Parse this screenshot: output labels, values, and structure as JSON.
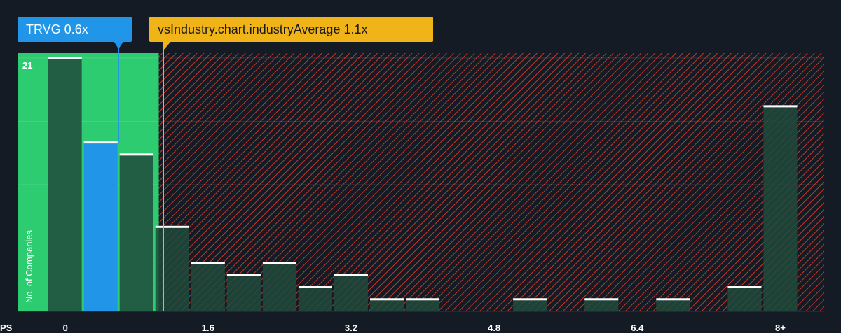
{
  "colors": {
    "background": "#151b24",
    "fair_zone": "#2ecc71",
    "company": "#2196e8",
    "industry": "#f0b418",
    "hatch": "#c0392b",
    "bar": "#1e4a3c",
    "bar_top": "#ffffff"
  },
  "callouts": {
    "company_label": "TRVG 0.6x",
    "industry_label": "vsIndustry.chart.industryAverage 1.1x"
  },
  "chart_data": {
    "type": "bar",
    "title": "",
    "xlabel": "PS",
    "ylabel": "No. of Companies",
    "x_ticks": [
      "0",
      "1.6",
      "3.2",
      "4.8",
      "6.4",
      "8+"
    ],
    "x_tick_values": [
      0,
      1.6,
      3.2,
      4.8,
      6.4,
      8.0
    ],
    "y_ticks": [
      "21"
    ],
    "y_tick_values": [
      21
    ],
    "ylim": [
      0,
      21.4
    ],
    "xlim": [
      -0.53,
      8.49
    ],
    "bin_width": 0.4,
    "bins": [
      {
        "x": 0.0,
        "count": 21,
        "highlight": false
      },
      {
        "x": 0.4,
        "count": 14,
        "highlight": true
      },
      {
        "x": 0.8,
        "count": 13,
        "highlight": false
      },
      {
        "x": 1.2,
        "count": 7,
        "highlight": false
      },
      {
        "x": 1.6,
        "count": 4,
        "highlight": false
      },
      {
        "x": 2.0,
        "count": 3,
        "highlight": false
      },
      {
        "x": 2.4,
        "count": 4,
        "highlight": false
      },
      {
        "x": 2.8,
        "count": 2,
        "highlight": false
      },
      {
        "x": 3.2,
        "count": 3,
        "highlight": false
      },
      {
        "x": 3.6,
        "count": 1,
        "highlight": false
      },
      {
        "x": 4.0,
        "count": 1,
        "highlight": false
      },
      {
        "x": 4.4,
        "count": 0,
        "highlight": false
      },
      {
        "x": 4.8,
        "count": 0,
        "highlight": false
      },
      {
        "x": 5.2,
        "count": 1,
        "highlight": false
      },
      {
        "x": 5.6,
        "count": 0,
        "highlight": false
      },
      {
        "x": 6.0,
        "count": 1,
        "highlight": false
      },
      {
        "x": 6.4,
        "count": 0,
        "highlight": false
      },
      {
        "x": 6.8,
        "count": 1,
        "highlight": false
      },
      {
        "x": 7.2,
        "count": 0,
        "highlight": false
      },
      {
        "x": 7.6,
        "count": 2,
        "highlight": false
      },
      {
        "x": 8.0,
        "count": 17,
        "highlight": false
      }
    ],
    "company_value": 0.6,
    "industry_average": 1.1,
    "fair_zone_end": 1.05,
    "grid": true,
    "legend": "none"
  }
}
